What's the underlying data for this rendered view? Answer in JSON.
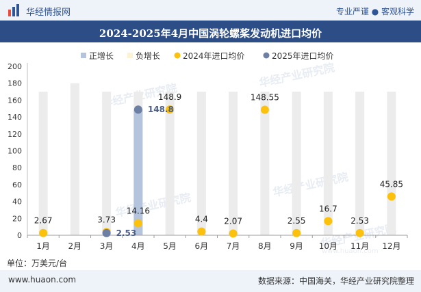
{
  "header": {
    "brand": "华经情报网",
    "tagline": "专业严谨 ● 客观科学"
  },
  "footer": {
    "site": "www.huaon.com",
    "source": "数据来源：中国海关，华经产业研究院整理"
  },
  "watermark": "华经产业研究院",
  "watermark_url": "www.huaon.com",
  "colors": {
    "positive_bar": "#b4c4dc",
    "negative_bar": "#fdf3d3",
    "background_bar": "#ececec",
    "series_2024": "#fcc10c",
    "series_2025": "#6d7fa3",
    "title_bg": "#2c4d86"
  },
  "chart_data": {
    "type": "bar+scatter",
    "title": "2024-2025年4月中国涡轮螺桨发动机进口均价",
    "unit_label": "单位：万美元/台",
    "categories": [
      "1月",
      "2月",
      "3月",
      "4月",
      "5月",
      "6月",
      "7月",
      "8月",
      "9月",
      "10月",
      "11月",
      "12月"
    ],
    "ylim": [
      0,
      200
    ],
    "yticks": [
      0,
      20,
      40,
      60,
      80,
      100,
      120,
      140,
      160,
      180,
      200
    ],
    "legend": [
      "正增长",
      "负增长",
      "2024年进口均价",
      "2025年进口均价"
    ],
    "legend_position": "top",
    "background_bars": [
      170,
      180,
      170,
      170,
      170,
      170,
      170,
      170,
      170,
      170,
      170,
      170
    ],
    "growth_bars": [
      {
        "index": 2,
        "type": "negative",
        "value": 3.73
      },
      {
        "index": 3,
        "type": "positive",
        "value": 148.8
      }
    ],
    "series": [
      {
        "name": "2024年进口均价",
        "values": [
          2.67,
          null,
          3.73,
          14.16,
          148.9,
          4.4,
          2.07,
          148.55,
          2.55,
          16.7,
          2.53,
          45.85
        ],
        "labels": [
          "2.67",
          "",
          "3.73",
          "14.16",
          "148.9",
          "4.4",
          "2.07",
          "148.55",
          "2.55",
          "16.7",
          "2.53",
          "45.85"
        ]
      },
      {
        "name": "2025年进口均价",
        "values": [
          null,
          null,
          2.53,
          148.8,
          null,
          null,
          null,
          null,
          null,
          null,
          null,
          null
        ],
        "labels": [
          "",
          "",
          "2.53",
          "148.8",
          "",
          "",
          "",
          "",
          "",
          "",
          "",
          ""
        ]
      }
    ]
  }
}
